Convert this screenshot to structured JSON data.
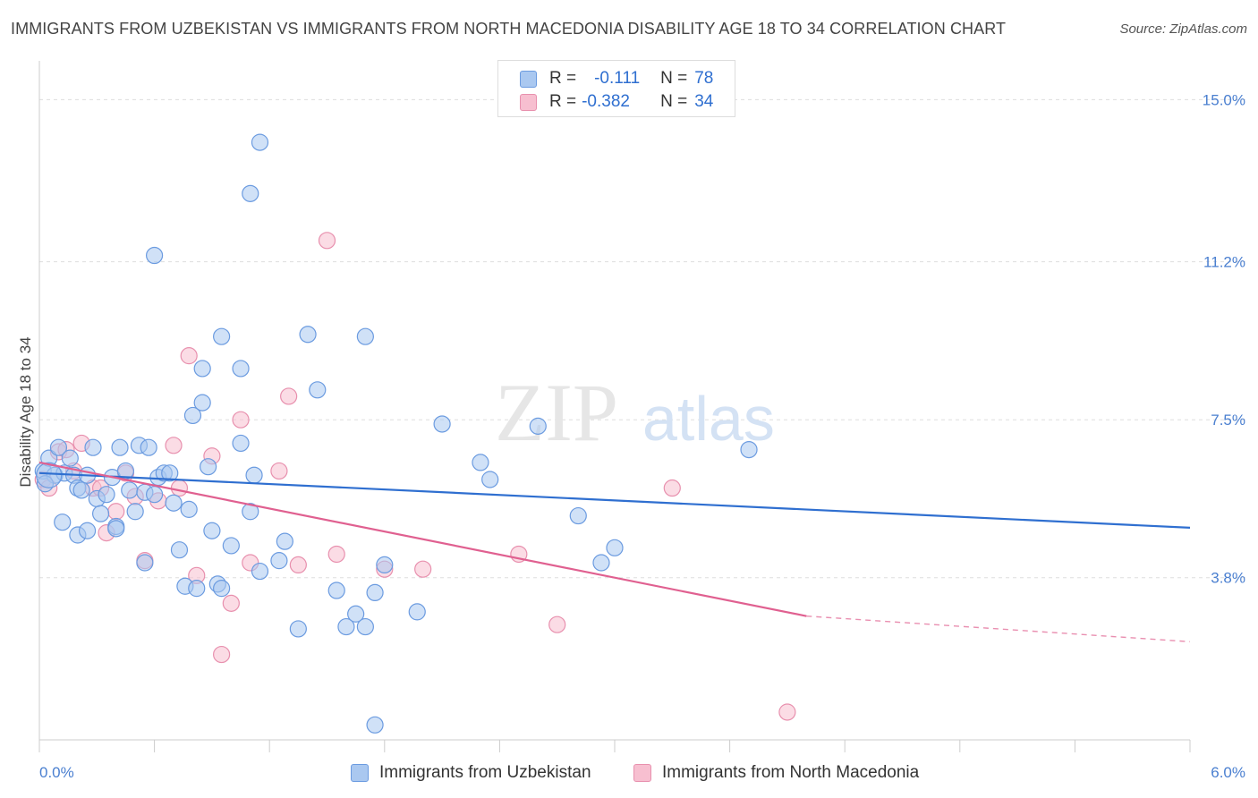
{
  "title": "IMMIGRANTS FROM UZBEKISTAN VS IMMIGRANTS FROM NORTH MACEDONIA DISABILITY AGE 18 TO 34 CORRELATION CHART",
  "source": "Source: ZipAtlas.com",
  "watermark": {
    "zip": "ZIP",
    "atlas": "atlas"
  },
  "legend_box": {
    "rows": [
      {
        "r_label": "R = ",
        "r_value": "-0.111",
        "n_label": "N = ",
        "n_value": "78"
      },
      {
        "r_label": "R = ",
        "r_value": "-0.382",
        "n_label": "N = ",
        "n_value": "34"
      }
    ]
  },
  "bottom_legend": {
    "series_a": "Immigrants from Uzbekistan",
    "series_b": "Immigrants from North Macedonia"
  },
  "colors": {
    "blue_fill": "#aac8f0",
    "blue_stroke": "#6b9be0",
    "blue_line": "#2f6fd0",
    "pink_fill": "#f7bfd0",
    "pink_stroke": "#e890ae",
    "pink_line": "#e06090",
    "grid": "#dddddd",
    "axis_text": "#4a7fd0"
  },
  "chart_data": {
    "type": "scatter",
    "title": "IMMIGRANTS FROM UZBEKISTAN VS IMMIGRANTS FROM NORTH MACEDONIA DISABILITY AGE 18 TO 34 CORRELATION CHART",
    "xlabel": "",
    "ylabel": "Disability Age 18 to 34",
    "xlim": [
      0,
      6
    ],
    "ylim": [
      0,
      15.7
    ],
    "x_tick_labels": [
      "0.0%",
      "6.0%"
    ],
    "y_ticks": [
      3.8,
      7.5,
      11.2,
      15.0
    ],
    "y_tick_labels": [
      "3.8%",
      "7.5%",
      "11.2%",
      "15.0%"
    ],
    "grid": true,
    "legend": "top-center",
    "series": [
      {
        "name": "Immigrants from Uzbekistan",
        "r": -0.111,
        "n": 78,
        "trend": {
          "x0": 0.0,
          "y0": 6.25,
          "x1": 6.0,
          "y1": 4.97
        },
        "points": [
          [
            0.02,
            6.3
          ],
          [
            0.05,
            6.6
          ],
          [
            0.08,
            6.2
          ],
          [
            0.1,
            6.85
          ],
          [
            0.13,
            6.25
          ],
          [
            0.16,
            6.6
          ],
          [
            0.18,
            6.2
          ],
          [
            0.2,
            5.9
          ],
          [
            0.22,
            5.85
          ],
          [
            0.25,
            6.2
          ],
          [
            0.28,
            6.85
          ],
          [
            0.3,
            5.65
          ],
          [
            0.32,
            5.3
          ],
          [
            0.35,
            5.75
          ],
          [
            0.38,
            6.15
          ],
          [
            0.4,
            5.0
          ],
          [
            0.42,
            6.85
          ],
          [
            0.45,
            6.3
          ],
          [
            0.47,
            5.85
          ],
          [
            0.5,
            5.35
          ],
          [
            0.52,
            6.9
          ],
          [
            0.55,
            5.8
          ],
          [
            0.57,
            6.85
          ],
          [
            0.6,
            5.75
          ],
          [
            0.62,
            6.15
          ],
          [
            0.65,
            6.25
          ],
          [
            0.68,
            6.25
          ],
          [
            0.7,
            5.55
          ],
          [
            0.73,
            4.45
          ],
          [
            0.76,
            3.6
          ],
          [
            0.78,
            5.4
          ],
          [
            0.8,
            7.6
          ],
          [
            0.82,
            3.55
          ],
          [
            0.85,
            8.7
          ],
          [
            0.88,
            6.4
          ],
          [
            0.9,
            4.9
          ],
          [
            0.93,
            3.65
          ],
          [
            0.95,
            3.55
          ],
          [
            1.0,
            4.55
          ],
          [
            1.05,
            6.95
          ],
          [
            1.1,
            5.35
          ],
          [
            1.12,
            6.2
          ],
          [
            1.15,
            3.95
          ],
          [
            1.25,
            4.2
          ],
          [
            1.28,
            4.65
          ],
          [
            1.35,
            2.6
          ],
          [
            1.4,
            9.5
          ],
          [
            1.45,
            8.2
          ],
          [
            1.55,
            3.5
          ],
          [
            1.6,
            2.65
          ],
          [
            1.65,
            2.95
          ],
          [
            1.7,
            9.45
          ],
          [
            1.75,
            3.45
          ],
          [
            1.8,
            4.1
          ],
          [
            1.97,
            3.0
          ],
          [
            2.1,
            7.4
          ],
          [
            2.3,
            6.5
          ],
          [
            2.35,
            6.1
          ],
          [
            2.6,
            7.35
          ],
          [
            2.81,
            5.25
          ],
          [
            2.93,
            4.15
          ],
          [
            3.0,
            4.5
          ],
          [
            3.7,
            6.8
          ],
          [
            0.55,
            4.15
          ],
          [
            0.85,
            7.9
          ],
          [
            0.95,
            9.45
          ],
          [
            1.15,
            14.0
          ],
          [
            1.1,
            12.8
          ],
          [
            0.6,
            11.35
          ],
          [
            1.05,
            8.7
          ],
          [
            1.75,
            0.35
          ],
          [
            1.7,
            2.65
          ],
          [
            0.12,
            5.1
          ],
          [
            0.03,
            6.0
          ],
          [
            0.4,
            4.95
          ],
          [
            0.2,
            4.8
          ],
          [
            0.25,
            4.9
          ],
          [
            0.05,
            6.2
          ]
        ]
      },
      {
        "name": "Immigrants from North Macedonia",
        "r": -0.382,
        "n": 34,
        "trend": {
          "x0": 0.0,
          "y0": 6.5,
          "x1": 4.0,
          "y1": 2.9,
          "dash_x1": 6.0,
          "dash_y1": 2.3
        },
        "points": [
          [
            0.02,
            6.1
          ],
          [
            0.05,
            5.9
          ],
          [
            0.1,
            6.75
          ],
          [
            0.14,
            6.8
          ],
          [
            0.18,
            6.3
          ],
          [
            0.22,
            6.95
          ],
          [
            0.28,
            5.9
          ],
          [
            0.32,
            5.9
          ],
          [
            0.35,
            4.85
          ],
          [
            0.4,
            5.35
          ],
          [
            0.45,
            6.25
          ],
          [
            0.5,
            5.7
          ],
          [
            0.55,
            4.2
          ],
          [
            0.62,
            5.6
          ],
          [
            0.7,
            6.9
          ],
          [
            0.73,
            5.9
          ],
          [
            0.78,
            9.0
          ],
          [
            0.82,
            3.85
          ],
          [
            0.9,
            6.65
          ],
          [
            0.95,
            2.0
          ],
          [
            1.0,
            3.2
          ],
          [
            1.05,
            7.5
          ],
          [
            1.1,
            4.15
          ],
          [
            1.25,
            6.3
          ],
          [
            1.3,
            8.05
          ],
          [
            1.35,
            4.1
          ],
          [
            1.5,
            11.7
          ],
          [
            1.55,
            4.35
          ],
          [
            1.8,
            4.0
          ],
          [
            2.0,
            4.0
          ],
          [
            2.5,
            4.35
          ],
          [
            2.7,
            2.7
          ],
          [
            3.3,
            5.9
          ],
          [
            3.9,
            0.65
          ]
        ]
      }
    ]
  }
}
